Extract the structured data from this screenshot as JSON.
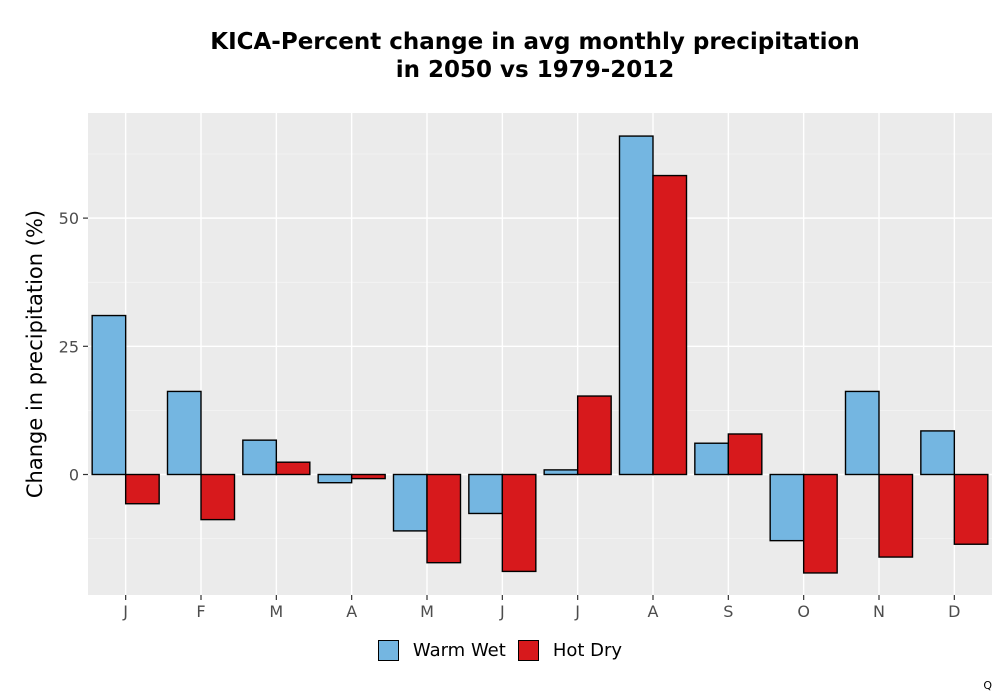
{
  "chart_data": {
    "type": "bar",
    "title_line1": "KICA-Percent change in avg monthly precipitation",
    "title_line2": "in 2050 vs 1979-2012",
    "xlabel": "",
    "ylabel": "Change in precipitation (%)",
    "categories": [
      "J",
      "F",
      "M",
      "A",
      "M",
      "J",
      "J",
      "A",
      "S",
      "O",
      "N",
      "D"
    ],
    "series": [
      {
        "name": "Warm Wet",
        "color": "#74b6e1",
        "values": [
          31,
          16.2,
          6.7,
          -1.6,
          -11,
          -7.6,
          0.9,
          66,
          6.1,
          -12.9,
          16.2,
          8.5
        ]
      },
      {
        "name": "Hot Dry",
        "color": "#d7191c",
        "values": [
          -5.7,
          -8.8,
          2.4,
          -0.8,
          -17.2,
          -18.9,
          15.3,
          58.3,
          7.9,
          -19.2,
          -16.1,
          -13.6
        ]
      }
    ],
    "yticks": [
      0,
      25,
      50
    ],
    "ylim": [
      -23.5,
      70.5
    ],
    "grid": true,
    "legend_position": "bottom"
  },
  "corner_mark": "Q"
}
